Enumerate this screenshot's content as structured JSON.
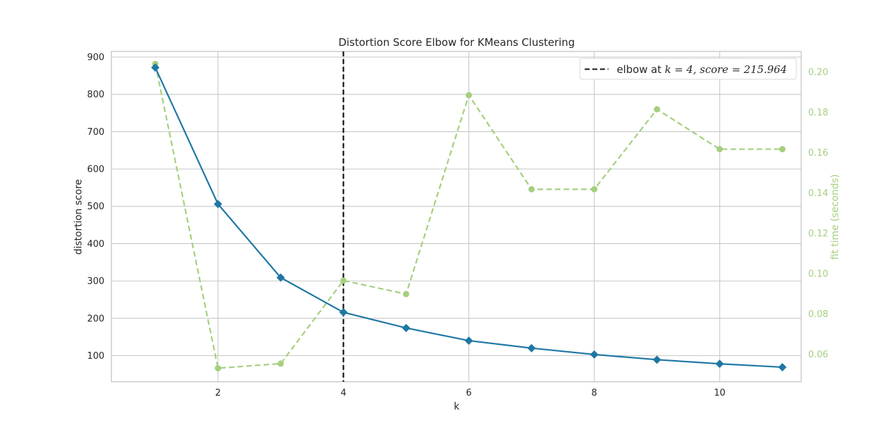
{
  "chart_data": {
    "type": "line",
    "title": "Distortion Score Elbow for KMeans Clustering",
    "xlabel": "k",
    "ylabel": "distortion score",
    "y2label": "fit time (seconds)",
    "x": [
      1,
      2,
      3,
      4,
      5,
      6,
      7,
      8,
      9,
      10,
      11
    ],
    "xlim": [
      0.3,
      11.3
    ],
    "ylim": [
      30,
      915
    ],
    "y2lim": [
      0.0463,
      0.2102
    ],
    "xticks": [
      "2",
      "4",
      "6",
      "8",
      "10"
    ],
    "yticks": [
      "100",
      "200",
      "300",
      "400",
      "500",
      "600",
      "700",
      "800",
      "900"
    ],
    "y2ticks": [
      "0.06",
      "0.08",
      "0.10",
      "0.12",
      "0.14",
      "0.16",
      "0.18",
      "0.20"
    ],
    "grid": true,
    "legend_position": "top-right",
    "series": [
      {
        "axis": "left",
        "style": "solid",
        "marker": "diamond",
        "color": "#1f77a4",
        "values": [
          872,
          506,
          309,
          216,
          174,
          140,
          120,
          103,
          89,
          78,
          69
        ]
      },
      {
        "axis": "right",
        "style": "dashed",
        "marker": "circle",
        "color": "#a5cf7f",
        "values": [
          0.204,
          0.053,
          0.0553,
          0.0965,
          0.0898,
          0.1885,
          0.1418,
          0.1418,
          0.1815,
          0.1617,
          0.1617
        ]
      }
    ],
    "elbow": {
      "k": 4,
      "score": 215.964,
      "legend_prefix": "elbow at ",
      "legend_math": "k = 4, score = 215.964"
    }
  }
}
